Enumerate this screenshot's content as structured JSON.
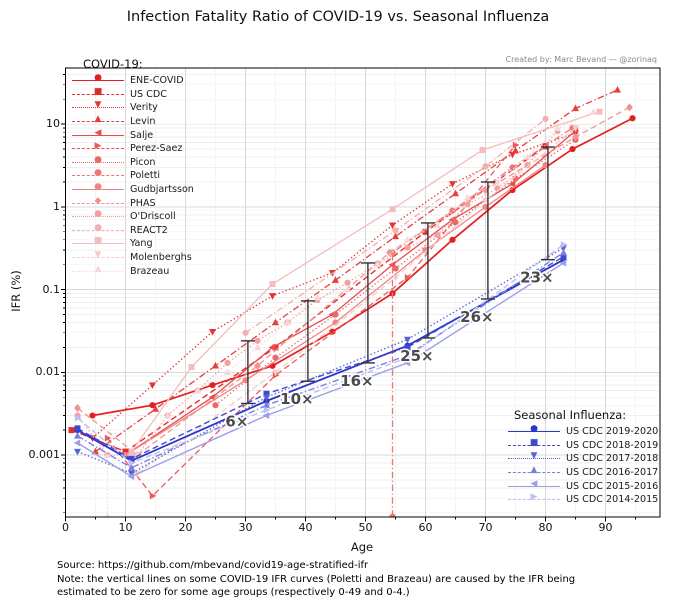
{
  "title": "Infection Fatality Ratio of COVID-19 vs. Seasonal Influenza",
  "credit": "Created by: Marc Bevand — @zorinaq",
  "axes": {
    "x_label": "Age",
    "y_label": "IFR (%)",
    "x_ticks": [
      0,
      10,
      20,
      30,
      40,
      50,
      60,
      70,
      80,
      90
    ],
    "x_minor_ticks": [
      5,
      15,
      25,
      35,
      45,
      55,
      65,
      75,
      85,
      95
    ],
    "y_ticks": [
      "10",
      "1",
      "0.1",
      "0.01",
      "0.001"
    ],
    "y_tick_values": [
      10,
      1,
      0.1,
      0.01,
      0.001
    ],
    "x_range": [
      0,
      99
    ],
    "y_scale": "log",
    "grid": true
  },
  "legend_covid": {
    "title": "COVID-19:"
  },
  "legend_flu": {
    "title": "Seasonal Influenza:"
  },
  "footnote": {
    "lines": [
      "Source: https://github.com/mbevand/covid19-age-stratified-ifr",
      "Note: the vertical lines on some COVID-19 IFR curves (Poletti and Brazeau) are caused by the IFR being",
      "estimated to be zero for some age groups (respectively 0-49 and 0-4.)"
    ]
  },
  "marker_glyphs": {
    "circle": "●",
    "square": "■",
    "tri-down": "▼",
    "tri-up": "▲",
    "tri-left": "◀",
    "tri-right": "▶",
    "diamond": "◆",
    "pentagon": "●",
    "hexagon": "●",
    "octagon": "●"
  },
  "colors": {
    "covid_base": "#e41f1f",
    "flu_base": "#2b36c8",
    "ratio_bar": "#333333",
    "ratio_text": "#4a4a4a",
    "grid_major": "#d9d9d9",
    "grid_minor": "#efefef",
    "credit_gray": "#8a8a8a"
  },
  "chart_data": {
    "type": "line",
    "y_scale": "log",
    "xlabel": "Age",
    "ylabel": "IFR (%)",
    "series": [
      {
        "name": "ENE-COVID",
        "group": "covid",
        "color": "#e41f1f",
        "linestyle": "solid",
        "marker": "circle",
        "width": 1.7,
        "x": [
          4.5,
          14.5,
          24.5,
          34.5,
          44.5,
          54.5,
          64.5,
          74.5,
          84.5,
          94.5
        ],
        "y": [
          0.003,
          0.004,
          0.007,
          0.012,
          0.031,
          0.09,
          0.4,
          1.6,
          5.0,
          11.8
        ]
      },
      {
        "name": "US CDC",
        "group": "covid",
        "color": "#e52929",
        "linestyle": "dashed",
        "marker": "square",
        "width": 1.4,
        "x": [
          1,
          10,
          35,
          60,
          80
        ],
        "y": [
          0.002,
          0.0011,
          0.02,
          0.5,
          5.4
        ]
      },
      {
        "name": "Verity",
        "group": "covid",
        "color": "#e63333",
        "linestyle": "dotted",
        "marker": "tri-down",
        "width": 1.3,
        "x": [
          4.5,
          14.5,
          24.5,
          34.5,
          44.5,
          54.5,
          64.5,
          74.5,
          85
        ],
        "y": [
          0.0016,
          0.007,
          0.031,
          0.084,
          0.16,
          0.6,
          1.9,
          4.3,
          7.8
        ]
      },
      {
        "name": "Levin",
        "group": "covid",
        "color": "#e73d3d",
        "linestyle": "dashdot",
        "marker": "tri-up",
        "width": 1.3,
        "x": [
          5,
          15,
          25,
          35,
          45,
          55,
          65,
          75,
          85,
          92
        ],
        "y": [
          0.0011,
          0.0036,
          0.012,
          0.04,
          0.13,
          0.44,
          1.45,
          4.8,
          15.5,
          26
        ]
      },
      {
        "name": "Salje",
        "group": "covid",
        "color": "#e94c4c",
        "linestyle": "solid",
        "marker": "tri-left",
        "width": 1.3,
        "x": [
          10,
          24.5,
          34.5,
          44.5,
          54.5,
          64.5,
          74.5,
          85
        ],
        "y": [
          0.001,
          0.005,
          0.02,
          0.05,
          0.2,
          0.7,
          1.9,
          8.3
        ]
      },
      {
        "name": "Perez-Saez",
        "group": "covid",
        "color": "#eb5a5a",
        "linestyle": "dashed",
        "marker": "tri-right",
        "width": 1.3,
        "x": [
          7,
          14.5,
          35,
          57,
          75
        ],
        "y": [
          0.0016,
          0.00032,
          0.0092,
          0.14,
          5.6
        ]
      },
      {
        "name": "Picon",
        "group": "covid",
        "color": "#ec6868",
        "linestyle": "dotted",
        "marker": "octagon",
        "width": 1.3,
        "x": [
          25,
          35,
          45,
          55,
          65,
          75,
          85
        ],
        "y": [
          0.004,
          0.015,
          0.05,
          0.18,
          0.65,
          2.2,
          6.5
        ]
      },
      {
        "name": "Poletti",
        "group": "covid",
        "color": "#ee7676",
        "linestyle": "dashdot",
        "marker": "pentagon",
        "width": 1.3,
        "x": [
          54.5,
          54.5,
          64.5,
          74.5,
          84.5
        ],
        "y": [
          0.00018,
          0.28,
          0.9,
          3.0,
          9.0
        ]
      },
      {
        "name": "Gudbjartsson",
        "group": "covid",
        "color": "#ef8484",
        "linestyle": "solid",
        "marker": "hexagon",
        "width": 1.3,
        "x": [
          10,
          30,
          45,
          60,
          70,
          80
        ],
        "y": [
          0.001,
          0.008,
          0.04,
          0.3,
          1.0,
          3.2
        ]
      },
      {
        "name": "PHAS",
        "group": "covid",
        "color": "#f09292",
        "linestyle": "dashed",
        "marker": "diamond",
        "width": 1.3,
        "x": [
          2,
          12,
          32,
          54,
          70,
          85,
          94
        ],
        "y": [
          0.0037,
          0.001,
          0.012,
          0.28,
          1.6,
          7.0,
          16
        ]
      },
      {
        "name": "O'Driscoll",
        "group": "covid",
        "color": "#f2a0a0",
        "linestyle": "dotted",
        "marker": "circle",
        "width": 1.3,
        "x": [
          2,
          7,
          12,
          17,
          22,
          27,
          32,
          37,
          42,
          47,
          52,
          57,
          62,
          67,
          72,
          77,
          82
        ],
        "y": [
          0.003,
          0.001,
          0.001,
          0.003,
          0.006,
          0.013,
          0.024,
          0.04,
          0.075,
          0.121,
          0.207,
          0.323,
          0.456,
          1.075,
          1.674,
          3.203,
          8.292
        ]
      },
      {
        "name": "REACT2",
        "group": "covid",
        "color": "#f3aeae",
        "linestyle": "dashdot",
        "marker": "circle",
        "width": 1.3,
        "x": [
          30,
          55,
          70,
          80
        ],
        "y": [
          0.03,
          0.52,
          3.1,
          11.6
        ]
      },
      {
        "name": "Yang",
        "group": "covid",
        "color": "#f4bcbc",
        "linestyle": "solid",
        "marker": "square",
        "width": 1.3,
        "x": [
          11,
          21,
          34.5,
          54.5,
          69.5,
          89
        ],
        "y": [
          0.0011,
          0.0116,
          0.117,
          0.939,
          4.87,
          14.2
        ]
      },
      {
        "name": "Molenberghs",
        "group": "covid",
        "color": "#f6caca",
        "linestyle": "dashed",
        "marker": "tri-down",
        "width": 1.3,
        "x": [
          12,
          35,
          55,
          70,
          85
        ],
        "y": [
          0.0006,
          0.01,
          0.14,
          1.2,
          9.0
        ]
      },
      {
        "name": "Brazeau",
        "group": "covid",
        "color": "#f7d8d8",
        "linestyle": "dotted",
        "marker": "tri-up",
        "width": 1.3,
        "x": [
          7,
          7,
          12,
          17,
          22,
          27,
          32,
          37,
          42,
          47,
          52,
          57,
          62,
          67,
          72,
          77,
          82,
          88
        ],
        "y": [
          0.00018,
          0.001,
          0.001,
          0.003,
          0.006,
          0.01,
          0.02,
          0.04,
          0.08,
          0.1,
          0.2,
          0.4,
          0.6,
          1.3,
          2.0,
          4.0,
          8.9,
          14
        ]
      },
      {
        "name": "US CDC 2019-2020",
        "group": "flu",
        "color": "#2b36c8",
        "linestyle": "solid",
        "marker": "circle",
        "width": 1.8,
        "x": [
          2,
          11,
          33.5,
          57,
          83
        ],
        "y": [
          0.002,
          0.00085,
          0.0045,
          0.021,
          0.23
        ]
      },
      {
        "name": "US CDC 2018-2019",
        "group": "flu",
        "color": "#3f49cf",
        "linestyle": "dashed",
        "marker": "square",
        "width": 1.4,
        "x": [
          2,
          11,
          33.5,
          57,
          83
        ],
        "y": [
          0.0021,
          0.0009,
          0.0055,
          0.02,
          0.25
        ]
      },
      {
        "name": "US CDC 2017-2018",
        "group": "flu",
        "color": "#5a62d8",
        "linestyle": "dotted",
        "marker": "tri-down",
        "width": 1.4,
        "x": [
          2,
          11,
          33.5,
          57,
          83
        ],
        "y": [
          0.0011,
          0.0006,
          0.005,
          0.025,
          0.32
        ]
      },
      {
        "name": "US CDC 2016-2017",
        "group": "flu",
        "color": "#7a80e1",
        "linestyle": "dashdot",
        "marker": "tri-up",
        "width": 1.4,
        "x": [
          2,
          11,
          33.5,
          57,
          83
        ],
        "y": [
          0.0017,
          0.0007,
          0.004,
          0.016,
          0.28
        ]
      },
      {
        "name": "US CDC 2015-2016",
        "group": "flu",
        "color": "#9b9fe9",
        "linestyle": "solid",
        "marker": "tri-left",
        "width": 1.4,
        "x": [
          2,
          11,
          33.5,
          57,
          83
        ],
        "y": [
          0.0014,
          0.00055,
          0.003,
          0.013,
          0.21
        ]
      },
      {
        "name": "US CDC 2014-2015",
        "group": "flu",
        "color": "#bdc0f2",
        "linestyle": "dashed",
        "marker": "tri-right",
        "width": 1.4,
        "x": [
          2,
          11,
          33.5,
          57,
          83
        ],
        "y": [
          0.0028,
          0.0008,
          0.0035,
          0.015,
          0.35
        ]
      }
    ],
    "ratio_bars": [
      {
        "label": "6×",
        "age": 30.4,
        "low": 0.0042,
        "high": 0.024
      },
      {
        "label": "10×",
        "age": 40.4,
        "low": 0.0078,
        "high": 0.073
      },
      {
        "label": "16×",
        "age": 50.4,
        "low": 0.013,
        "high": 0.21
      },
      {
        "label": "25×",
        "age": 60.4,
        "low": 0.026,
        "high": 0.64
      },
      {
        "label": "26×",
        "age": 70.4,
        "low": 0.077,
        "high": 2.0
      },
      {
        "label": "23×",
        "age": 80.4,
        "low": 0.23,
        "high": 5.3
      }
    ]
  }
}
